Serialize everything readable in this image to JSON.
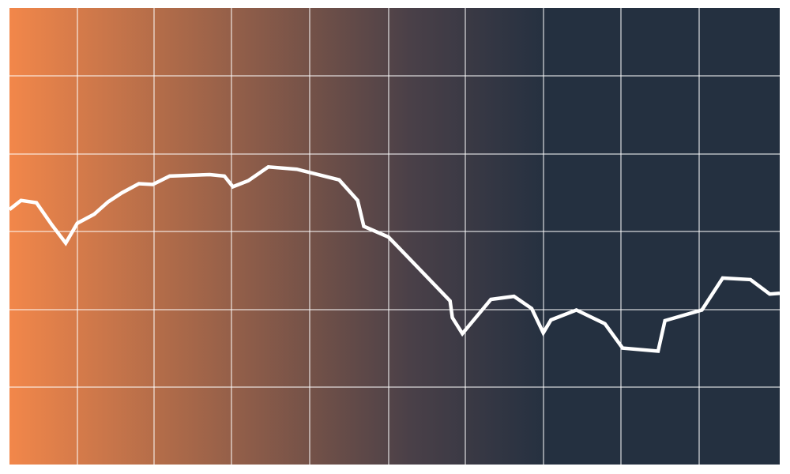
{
  "chart_data": {
    "type": "line",
    "title": "",
    "xlabel": "",
    "ylabel": "",
    "grid": true,
    "legend": "none",
    "xlim": [
      0,
      100
    ],
    "ylim": [
      0,
      6
    ],
    "colors": {
      "gradient_start": "#f2874a",
      "gradient_end": "#243040",
      "line": "#ffffff",
      "grid": "#ffffff"
    },
    "series": [
      {
        "points": [
          [
            0,
            3.35
          ],
          [
            1.5,
            3.47
          ],
          [
            3.5,
            3.44
          ],
          [
            5.5,
            3.15
          ],
          [
            7.3,
            2.91
          ],
          [
            8.8,
            3.17
          ],
          [
            11,
            3.29
          ],
          [
            12.8,
            3.45
          ],
          [
            14.6,
            3.57
          ],
          [
            16.8,
            3.69
          ],
          [
            18.6,
            3.68
          ],
          [
            20.8,
            3.79
          ],
          [
            26,
            3.81
          ],
          [
            27.9,
            3.79
          ],
          [
            29,
            3.65
          ],
          [
            31,
            3.73
          ],
          [
            33.6,
            3.91
          ],
          [
            37.3,
            3.88
          ],
          [
            42.8,
            3.74
          ],
          [
            45.2,
            3.47
          ],
          [
            46,
            3.13
          ],
          [
            49.2,
            2.99
          ],
          [
            51.3,
            2.77
          ],
          [
            57.2,
            2.15
          ],
          [
            57.5,
            1.93
          ],
          [
            58.8,
            1.72
          ],
          [
            62.5,
            2.17
          ],
          [
            65.5,
            2.21
          ],
          [
            67.8,
            2.05
          ],
          [
            69.3,
            1.73
          ],
          [
            70.3,
            1.9
          ],
          [
            73.6,
            2.03
          ],
          [
            77.3,
            1.85
          ],
          [
            79.6,
            1.53
          ],
          [
            84.2,
            1.49
          ],
          [
            85.1,
            1.89
          ],
          [
            89.9,
            2.03
          ],
          [
            92.6,
            2.45
          ],
          [
            96.2,
            2.43
          ],
          [
            98.7,
            2.24
          ],
          [
            100,
            2.25
          ]
        ]
      }
    ]
  }
}
